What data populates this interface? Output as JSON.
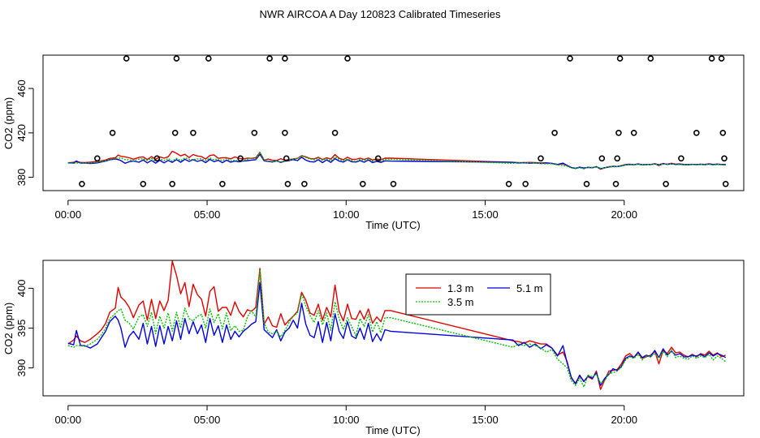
{
  "title": "NWR AIRCOA A  Day 120823  Calibrated Timeseries",
  "colors": {
    "red": "#e00000",
    "green": "#00c000",
    "blue": "#0000e0",
    "axis": "#000000"
  },
  "chart_data": [
    {
      "id": "top",
      "type": "line+scatter",
      "xlabel": "Time (UTC)",
      "ylabel": "CO2 (ppm)",
      "xlim": [
        -0.9,
        24.3
      ],
      "ylim": [
        368,
        490
      ],
      "xticks": [
        0,
        5,
        10,
        15,
        20
      ],
      "xtick_labels": [
        "00:00",
        "05:00",
        "10:00",
        "15:00",
        "20:00"
      ],
      "yticks": [
        380,
        420,
        460
      ],
      "ytick_labels": [
        "380",
        "420",
        "460"
      ],
      "scatter_points": [
        {
          "x": 0.5,
          "y": 374
        },
        {
          "x": 1.05,
          "y": 397
        },
        {
          "x": 1.6,
          "y": 420
        },
        {
          "x": 2.1,
          "y": 487
        },
        {
          "x": 2.7,
          "y": 374
        },
        {
          "x": 3.2,
          "y": 397
        },
        {
          "x": 3.75,
          "y": 374
        },
        {
          "x": 3.85,
          "y": 420
        },
        {
          "x": 3.9,
          "y": 487
        },
        {
          "x": 4.5,
          "y": 420
        },
        {
          "x": 5.05,
          "y": 487
        },
        {
          "x": 5.55,
          "y": 374
        },
        {
          "x": 6.2,
          "y": 397
        },
        {
          "x": 6.7,
          "y": 420
        },
        {
          "x": 7.25,
          "y": 487
        },
        {
          "x": 7.8,
          "y": 487
        },
        {
          "x": 7.8,
          "y": 420
        },
        {
          "x": 7.85,
          "y": 397
        },
        {
          "x": 7.9,
          "y": 374
        },
        {
          "x": 8.5,
          "y": 374
        },
        {
          "x": 9.6,
          "y": 420
        },
        {
          "x": 10.05,
          "y": 487
        },
        {
          "x": 10.6,
          "y": 374
        },
        {
          "x": 11.15,
          "y": 397
        },
        {
          "x": 11.7,
          "y": 374
        },
        {
          "x": 15.85,
          "y": 374
        },
        {
          "x": 16.45,
          "y": 374
        },
        {
          "x": 17.0,
          "y": 397
        },
        {
          "x": 17.5,
          "y": 420
        },
        {
          "x": 18.05,
          "y": 487
        },
        {
          "x": 18.65,
          "y": 374
        },
        {
          "x": 19.2,
          "y": 397
        },
        {
          "x": 19.7,
          "y": 374
        },
        {
          "x": 19.75,
          "y": 397
        },
        {
          "x": 19.8,
          "y": 420
        },
        {
          "x": 19.85,
          "y": 487
        },
        {
          "x": 20.35,
          "y": 420
        },
        {
          "x": 20.95,
          "y": 487
        },
        {
          "x": 21.5,
          "y": 374
        },
        {
          "x": 22.05,
          "y": 397
        },
        {
          "x": 22.6,
          "y": 420
        },
        {
          "x": 23.15,
          "y": 487
        },
        {
          "x": 23.5,
          "y": 487
        },
        {
          "x": 23.55,
          "y": 420
        },
        {
          "x": 23.6,
          "y": 397
        },
        {
          "x": 23.65,
          "y": 374
        }
      ]
    },
    {
      "id": "bottom",
      "type": "line",
      "xlabel": "Time (UTC)",
      "ylabel": "CO2 (ppm)",
      "xlim": [
        -0.9,
        24.3
      ],
      "ylim": [
        386.5,
        403.5
      ],
      "xticks": [
        0,
        5,
        10,
        15,
        20
      ],
      "xtick_labels": [
        "00:00",
        "05:00",
        "10:00",
        "15:00",
        "20:00"
      ],
      "yticks": [
        390,
        395,
        400
      ],
      "ytick_labels": [
        "390",
        "395",
        "400"
      ],
      "legend": {
        "placement": "top-center",
        "entries": [
          "1.3 m",
          "3.5 m",
          "5.1 m"
        ]
      }
    }
  ],
  "series": [
    {
      "name": "1.3 m",
      "color": "red",
      "x": [
        0,
        0.2,
        0.3,
        0.45,
        0.6,
        0.8,
        1.05,
        1.2,
        1.35,
        1.5,
        1.7,
        1.8,
        1.9,
        2.05,
        2.2,
        2.35,
        2.55,
        2.7,
        2.85,
        3.0,
        3.15,
        3.3,
        3.45,
        3.6,
        3.75,
        3.9,
        4.05,
        4.2,
        4.35,
        4.5,
        4.65,
        4.8,
        4.95,
        5.1,
        5.25,
        5.4,
        5.55,
        5.7,
        5.85,
        6.0,
        6.15,
        6.3,
        6.45,
        6.6,
        6.75,
        6.9,
        7.05,
        7.2,
        7.35,
        7.5,
        7.65,
        7.8,
        7.95,
        8.1,
        8.25,
        8.4,
        8.55,
        8.7,
        8.85,
        9.0,
        9.15,
        9.3,
        9.45,
        9.6,
        9.75,
        9.9,
        10.05,
        10.2,
        10.35,
        10.5,
        10.65,
        10.8,
        10.95,
        11.1,
        11.25,
        11.4,
        11.6,
        16.0,
        16.2,
        16.4,
        16.6,
        16.8,
        17.0,
        17.2,
        17.4,
        17.6,
        17.8,
        17.95,
        18.1,
        18.25,
        18.4,
        18.55,
        18.7,
        18.85,
        19.0,
        19.15,
        19.3,
        19.45,
        19.6,
        19.75,
        19.9,
        20.05,
        20.2,
        20.35,
        20.5,
        20.65,
        20.8,
        20.95,
        21.1,
        21.25,
        21.4,
        21.55,
        21.7,
        21.85,
        22.0,
        22.15,
        22.3,
        22.45,
        22.6,
        22.75,
        22.9,
        23.05,
        23.2,
        23.35,
        23.5,
        23.65
      ],
      "y": [
        393.0,
        393.5,
        394.0,
        393.4,
        393.2,
        393.6,
        394.3,
        394.8,
        395.6,
        397.0,
        397.5,
        400.1,
        398.9,
        398.4,
        397.6,
        396.3,
        397.9,
        398.4,
        396.0,
        398.6,
        396.2,
        398.4,
        397.2,
        398.5,
        403.4,
        401.6,
        399.3,
        400.7,
        397.7,
        400.5,
        399.2,
        398.6,
        396.5,
        399.6,
        400.2,
        397.1,
        397.6,
        397.6,
        396.6,
        398.3,
        397.1,
        396.4,
        397.3,
        397.1,
        397.6,
        402.5,
        395.5,
        396.4,
        395.3,
        395.1,
        396.8,
        395.4,
        396.0,
        396.5,
        397.1,
        399.5,
        398.5,
        396.9,
        396.6,
        398.0,
        396.0,
        397.6,
        396.4,
        400.4,
        397.1,
        395.9,
        398.0,
        396.2,
        396.1,
        397.2,
        396.1,
        397.4,
        395.6,
        396.4,
        395.8,
        397.2,
        397.2,
        393.4,
        393.3,
        393.1,
        393.4,
        393.2,
        393.0,
        393.0,
        392.5,
        391.6,
        392.0,
        390.8,
        388.7,
        388.1,
        389.0,
        388.3,
        388.9,
        388.6,
        389.6,
        387.3,
        388.5,
        389.6,
        389.7,
        389.8,
        390.5,
        391.5,
        391.8,
        391.3,
        391.9,
        391.2,
        391.4,
        391.6,
        392.1,
        390.5,
        392.2,
        391.8,
        392.6,
        391.9,
        392.0,
        391.6,
        391.4,
        391.7,
        391.4,
        391.8,
        391.6,
        392.1,
        391.6,
        391.9,
        391.4,
        391.6
      ]
    },
    {
      "name": "3.5 m",
      "color": "green",
      "x": [
        0,
        0.2,
        0.3,
        0.45,
        0.6,
        0.8,
        1.05,
        1.2,
        1.35,
        1.5,
        1.7,
        1.8,
        1.9,
        2.05,
        2.2,
        2.35,
        2.55,
        2.7,
        2.85,
        3.0,
        3.15,
        3.3,
        3.45,
        3.6,
        3.75,
        3.9,
        4.05,
        4.2,
        4.35,
        4.5,
        4.65,
        4.8,
        4.95,
        5.1,
        5.25,
        5.4,
        5.55,
        5.7,
        5.85,
        6.0,
        6.15,
        6.3,
        6.45,
        6.6,
        6.75,
        6.9,
        7.05,
        7.2,
        7.35,
        7.5,
        7.65,
        7.8,
        7.95,
        8.1,
        8.25,
        8.4,
        8.55,
        8.7,
        8.85,
        9.0,
        9.15,
        9.3,
        9.45,
        9.6,
        9.75,
        9.9,
        10.05,
        10.2,
        10.35,
        10.5,
        10.65,
        10.8,
        10.95,
        11.1,
        11.25,
        11.4,
        11.6,
        16.0,
        16.2,
        16.4,
        16.6,
        16.8,
        17.0,
        17.2,
        17.4,
        17.6,
        17.8,
        17.95,
        18.1,
        18.25,
        18.4,
        18.55,
        18.7,
        18.85,
        19.0,
        19.15,
        19.3,
        19.45,
        19.6,
        19.75,
        19.9,
        20.05,
        20.2,
        20.35,
        20.5,
        20.65,
        20.8,
        20.95,
        21.1,
        21.25,
        21.4,
        21.55,
        21.7,
        21.85,
        22.0,
        22.15,
        22.3,
        22.45,
        22.6,
        22.75,
        22.9,
        23.05,
        23.2,
        23.35,
        23.5,
        23.65
      ],
      "y": [
        392.8,
        392.6,
        392.8,
        392.8,
        392.7,
        393.0,
        393.6,
        394.2,
        395.0,
        396.2,
        396.8,
        397.2,
        397.4,
        396.0,
        395.6,
        394.9,
        396.4,
        396.7,
        395.2,
        397.0,
        394.3,
        396.5,
        395.0,
        396.9,
        394.6,
        397.0,
        395.0,
        397.5,
        396.2,
        395.9,
        396.5,
        396.7,
        395.0,
        397.4,
        395.7,
        396.8,
        394.9,
        396.9,
        394.7,
        395.3,
        394.6,
        394.7,
        396.4,
        397.2,
        396.4,
        402.3,
        395.6,
        394.5,
        394.3,
        394.6,
        393.9,
        394.7,
        395.7,
        396.5,
        396.9,
        399.3,
        397.8,
        396.6,
        395.7,
        397.2,
        395.4,
        396.9,
        394.7,
        398.3,
        396.2,
        394.8,
        396.3,
        395.2,
        394.0,
        396.2,
        395.2,
        396.7,
        394.5,
        395.8,
        394.4,
        396.3,
        396.3,
        392.6,
        393.0,
        392.8,
        393.0,
        392.8,
        392.5,
        392.0,
        392.3,
        391.1,
        390.5,
        390.0,
        388.4,
        387.8,
        388.7,
        387.6,
        389.1,
        388.9,
        389.2,
        388.1,
        388.4,
        389.3,
        389.4,
        389.6,
        390.1,
        391.0,
        391.4,
        391.2,
        391.7,
        391.0,
        391.5,
        391.4,
        391.8,
        391.2,
        392.1,
        391.4,
        392.3,
        391.3,
        391.5,
        391.2,
        391.1,
        391.5,
        391.2,
        391.5,
        391.3,
        391.7,
        391.0,
        391.5,
        391.2,
        390.8
      ]
    },
    {
      "name": "5.1 m",
      "color": "blue",
      "x": [
        0,
        0.2,
        0.3,
        0.45,
        0.6,
        0.8,
        1.05,
        1.2,
        1.35,
        1.5,
        1.7,
        1.8,
        1.9,
        2.05,
        2.2,
        2.35,
        2.55,
        2.7,
        2.85,
        3.0,
        3.15,
        3.3,
        3.45,
        3.6,
        3.75,
        3.9,
        4.05,
        4.2,
        4.35,
        4.5,
        4.65,
        4.8,
        4.95,
        5.1,
        5.25,
        5.4,
        5.55,
        5.7,
        5.85,
        6.0,
        6.15,
        6.3,
        6.45,
        6.6,
        6.75,
        6.9,
        7.05,
        7.2,
        7.35,
        7.5,
        7.65,
        7.8,
        7.95,
        8.1,
        8.25,
        8.4,
        8.55,
        8.7,
        8.85,
        9.0,
        9.15,
        9.3,
        9.45,
        9.6,
        9.75,
        9.9,
        10.05,
        10.2,
        10.35,
        10.5,
        10.65,
        10.8,
        10.95,
        11.1,
        11.25,
        11.4,
        11.6,
        16.0,
        16.2,
        16.4,
        16.6,
        16.8,
        17.0,
        17.2,
        17.4,
        17.6,
        17.8,
        17.95,
        18.1,
        18.25,
        18.4,
        18.55,
        18.7,
        18.85,
        19.0,
        19.15,
        19.3,
        19.45,
        19.6,
        19.75,
        19.9,
        20.05,
        20.2,
        20.35,
        20.5,
        20.65,
        20.8,
        20.95,
        21.1,
        21.25,
        21.4,
        21.55,
        21.7,
        21.85,
        22.0,
        22.15,
        22.3,
        22.45,
        22.6,
        22.75,
        22.9,
        23.05,
        23.2,
        23.35,
        23.5,
        23.65
      ],
      "y": [
        393.1,
        392.9,
        394.7,
        392.8,
        392.8,
        392.5,
        393.0,
        393.8,
        394.6,
        395.8,
        396.5,
        396.0,
        395.0,
        392.6,
        394.0,
        394.6,
        393.6,
        395.6,
        393.0,
        395.2,
        392.7,
        395.3,
        393.0,
        395.2,
        393.4,
        395.9,
        393.6,
        396.2,
        394.3,
        395.8,
        394.3,
        395.4,
        393.2,
        396.2,
        394.1,
        395.3,
        393.2,
        395.4,
        393.6,
        394.6,
        393.9,
        394.6,
        395.0,
        395.5,
        395.8,
        400.7,
        394.8,
        394.3,
        393.8,
        394.8,
        393.4,
        394.5,
        395.0,
        396.0,
        395.0,
        398.1,
        395.5,
        394.1,
        393.8,
        395.8,
        393.2,
        395.7,
        393.4,
        396.8,
        394.6,
        393.7,
        395.8,
        394.0,
        393.7,
        395.0,
        393.6,
        395.6,
        393.3,
        394.3,
        393.4,
        394.8,
        394.6,
        393.5,
        392.8,
        393.2,
        392.6,
        393.0,
        392.4,
        392.9,
        392.5,
        391.5,
        392.8,
        390.6,
        388.8,
        388.0,
        389.1,
        388.3,
        389.0,
        388.7,
        389.4,
        387.8,
        388.7,
        389.2,
        389.9,
        389.7,
        390.2,
        391.2,
        391.5,
        391.3,
        392.0,
        391.3,
        391.6,
        391.4,
        392.2,
        391.3,
        392.4,
        391.6,
        392.1,
        391.6,
        391.8,
        391.4,
        391.4,
        391.6,
        391.5,
        391.7,
        391.4,
        391.9,
        391.5,
        391.8,
        391.6,
        391.3
      ]
    }
  ]
}
